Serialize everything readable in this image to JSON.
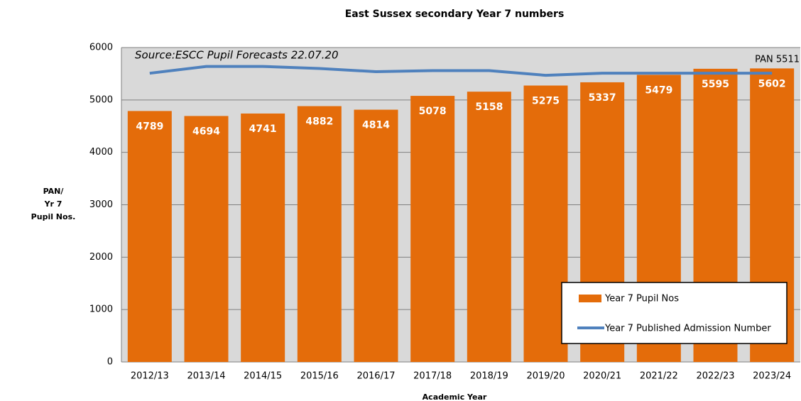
{
  "chart_data": {
    "type": "bar",
    "title": "East Sussex secondary Year 7 numbers",
    "xlabel": "Academic Year",
    "ylabel": [
      "PAN/",
      "Yr 7",
      "Pupil Nos."
    ],
    "annotations": [
      "Source:ESCC Pupil Forecasts 22.07.20",
      "PAN 5511"
    ],
    "categories": [
      "2012/13",
      "2013/14",
      "2014/15",
      "2015/16",
      "2016/17",
      "2017/18",
      "2018/19",
      "2019/20",
      "2020/21",
      "2021/22",
      "2022/23",
      "2023/24"
    ],
    "series": [
      {
        "name": "Year 7 Pupil Nos",
        "type": "bar",
        "color": "#e46c0a",
        "values": [
          4789,
          4694,
          4741,
          4882,
          4814,
          5078,
          5158,
          5275,
          5337,
          5479,
          5595,
          5602
        ]
      },
      {
        "name": "Year 7 Published Admission Number",
        "type": "line",
        "color": "#4f81bd",
        "values": [
          5510,
          5640,
          5640,
          5600,
          5540,
          5560,
          5560,
          5470,
          5510,
          5511,
          5511,
          5511
        ]
      }
    ],
    "ylim": [
      0,
      6000
    ],
    "yticks": [
      0,
      1000,
      2000,
      3000,
      4000,
      5000,
      6000
    ],
    "grid": true
  }
}
